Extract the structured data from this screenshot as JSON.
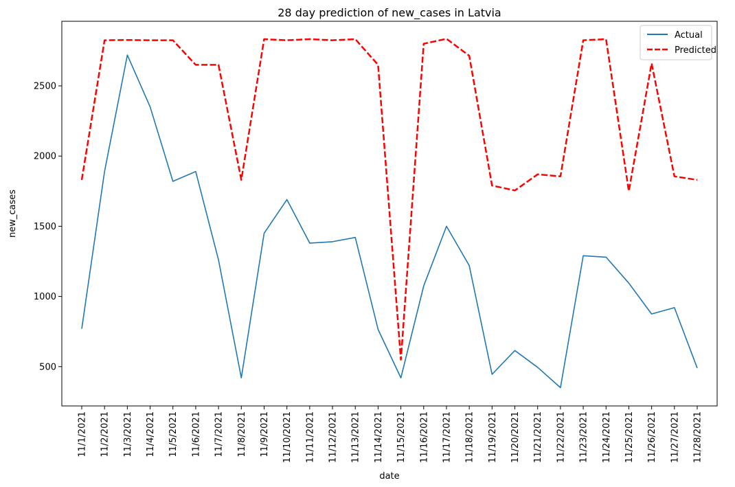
{
  "chart_data": {
    "type": "line",
    "title": "28 day prediction of new_cases in Latvia",
    "xlabel": "date",
    "ylabel": "new_cases",
    "categories": [
      "11/1/2021",
      "11/2/2021",
      "11/3/2021",
      "11/4/2021",
      "11/5/2021",
      "11/6/2021",
      "11/7/2021",
      "11/8/2021",
      "11/9/2021",
      "11/10/2021",
      "11/11/2021",
      "11/12/2021",
      "11/13/2021",
      "11/14/2021",
      "11/15/2021",
      "11/16/2021",
      "11/17/2021",
      "11/18/2021",
      "11/19/2021",
      "11/20/2021",
      "11/21/2021",
      "11/22/2021",
      "11/23/2021",
      "11/24/2021",
      "11/25/2021",
      "11/26/2021",
      "11/27/2021",
      "11/28/2021"
    ],
    "ylim": [
      220,
      2960
    ],
    "yticks": [
      500,
      1000,
      1500,
      2000,
      2500
    ],
    "grid": false,
    "legend_position": "top-right",
    "series": [
      {
        "name": "Actual",
        "color": "#1f77b4",
        "style": "solid",
        "values": [
          770,
          1890,
          2720,
          2350,
          1820,
          1890,
          1260,
          420,
          1450,
          1690,
          1380,
          1390,
          1420,
          765,
          420,
          1075,
          1500,
          1220,
          445,
          615,
          495,
          350,
          1290,
          1280,
          1095,
          875,
          920,
          490
        ]
      },
      {
        "name": "Predicted",
        "color": "#ff0000",
        "style": "dashed",
        "values": [
          1830,
          2825,
          2827,
          2825,
          2825,
          2650,
          2650,
          1830,
          2833,
          2825,
          2833,
          2825,
          2833,
          2650,
          550,
          2800,
          2835,
          2715,
          1790,
          1755,
          1870,
          1855,
          2825,
          2833,
          1750,
          2660,
          1855,
          1830
        ]
      }
    ]
  }
}
